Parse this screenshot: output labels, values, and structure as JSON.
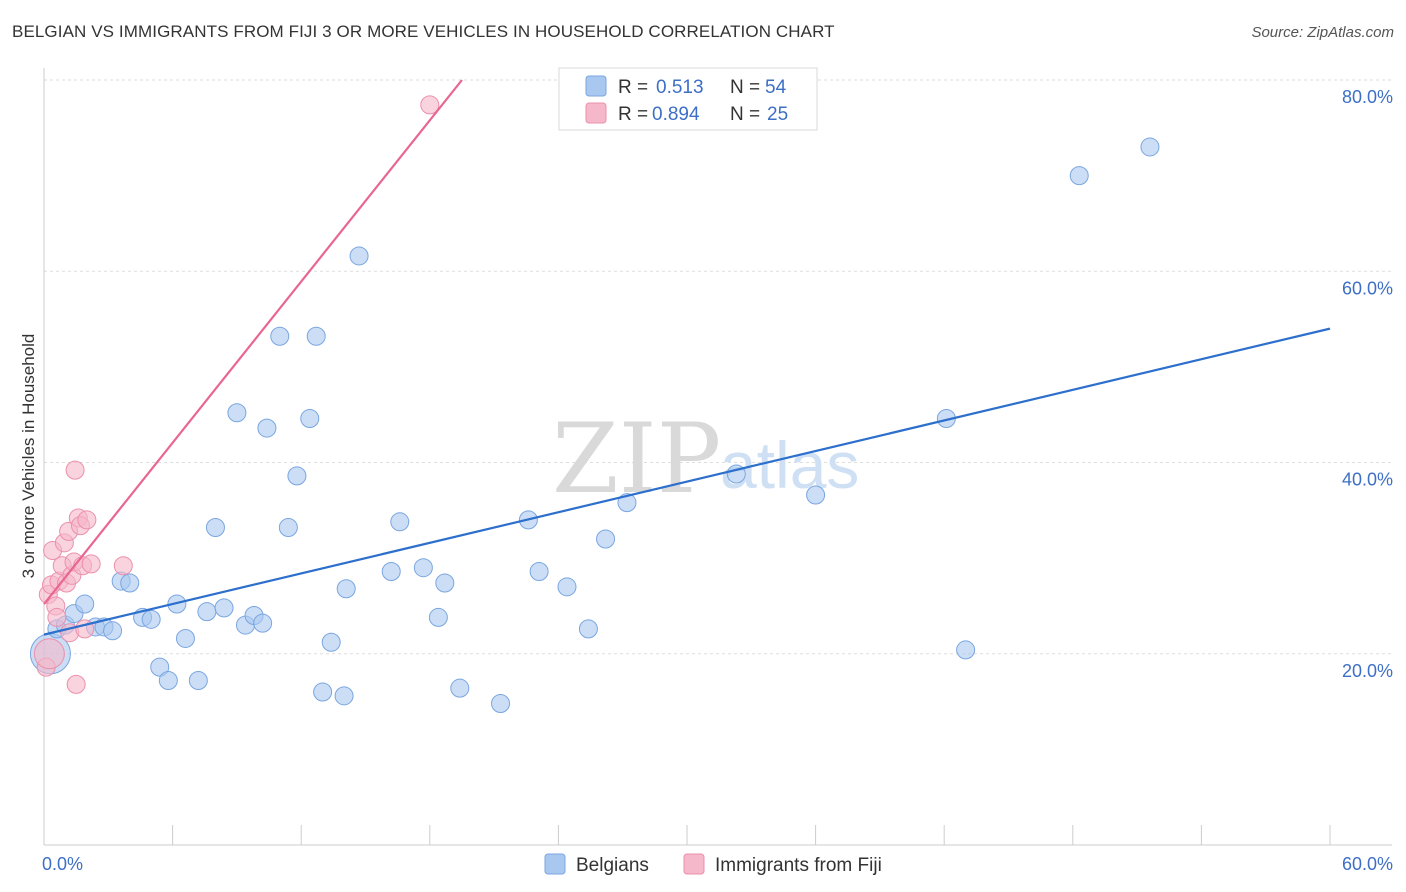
{
  "header": {
    "title": "BELGIAN VS IMMIGRANTS FROM FIJI 3 OR MORE VEHICLES IN HOUSEHOLD CORRELATION CHART",
    "source": "Source: ZipAtlas.com"
  },
  "watermark": {
    "zip": "ZIP",
    "atlas": "atlas"
  },
  "legend": [
    {
      "r_label": "R =",
      "r_value": "0.513",
      "n_label": "N =",
      "n_value": "54",
      "color": "#a9c8f0"
    },
    {
      "r_label": "R =",
      "r_value": "0.894",
      "n_label": "N =",
      "n_value": "25",
      "color": "#f5b8ca"
    }
  ],
  "chart_data": {
    "type": "scatter",
    "ylabel": "3 or more Vehicles in Household",
    "xlim": [
      0,
      60
    ],
    "ylim": [
      0,
      80
    ],
    "x_tick_labels": [
      {
        "value": 0,
        "label": "0.0%"
      },
      {
        "value": 60,
        "label": "60.0%"
      }
    ],
    "y_tick_labels": [
      {
        "value": 20,
        "label": "20.0%"
      },
      {
        "value": 40,
        "label": "40.0%"
      },
      {
        "value": 60,
        "label": "60.0%"
      },
      {
        "value": 80,
        "label": "80.0%"
      }
    ],
    "series": [
      {
        "name": "Belgians",
        "color": "#a9c8f0",
        "stroke": "#7aa6e0",
        "line_color": "#2d6fcc",
        "trend": [
          [
            0,
            22.0
          ],
          [
            60,
            54.0
          ]
        ],
        "points": [
          [
            0.3,
            20.0
          ],
          [
            0.6,
            22.6
          ],
          [
            1.0,
            23.0
          ],
          [
            1.4,
            24.2
          ],
          [
            1.9,
            25.2
          ],
          [
            2.4,
            22.8
          ],
          [
            2.8,
            22.8
          ],
          [
            3.2,
            22.4
          ],
          [
            3.6,
            27.6
          ],
          [
            4.0,
            27.4
          ],
          [
            4.6,
            23.8
          ],
          [
            5.0,
            23.6
          ],
          [
            5.4,
            18.6
          ],
          [
            5.8,
            17.2
          ],
          [
            6.2,
            25.2
          ],
          [
            6.6,
            21.6
          ],
          [
            7.2,
            17.2
          ],
          [
            7.6,
            24.4
          ],
          [
            8.0,
            33.2
          ],
          [
            8.4,
            24.8
          ],
          [
            9.0,
            45.2
          ],
          [
            9.4,
            23.0
          ],
          [
            9.8,
            24.0
          ],
          [
            10.2,
            23.2
          ],
          [
            10.4,
            43.6
          ],
          [
            11.0,
            53.2
          ],
          [
            11.4,
            33.2
          ],
          [
            11.8,
            38.6
          ],
          [
            12.4,
            44.6
          ],
          [
            12.7,
            53.2
          ],
          [
            13.0,
            16.0
          ],
          [
            13.4,
            21.2
          ],
          [
            14.0,
            15.6
          ],
          [
            14.1,
            26.8
          ],
          [
            14.7,
            61.6
          ],
          [
            16.2,
            28.6
          ],
          [
            16.6,
            33.8
          ],
          [
            17.7,
            29.0
          ],
          [
            18.4,
            23.8
          ],
          [
            18.7,
            27.4
          ],
          [
            19.4,
            16.4
          ],
          [
            21.3,
            14.8
          ],
          [
            22.6,
            34.0
          ],
          [
            23.1,
            28.6
          ],
          [
            24.4,
            27.0
          ],
          [
            25.4,
            22.6
          ],
          [
            26.2,
            32.0
          ],
          [
            27.2,
            35.8
          ],
          [
            32.3,
            38.8
          ],
          [
            36.0,
            36.6
          ],
          [
            42.1,
            44.6
          ],
          [
            43.0,
            20.4
          ],
          [
            48.3,
            70.0
          ],
          [
            51.6,
            73.0
          ]
        ]
      },
      {
        "name": "Immigrants from Fiji",
        "color": "#f5b8ca",
        "stroke": "#ec90ab",
        "line_color": "#e8668f",
        "trend": [
          [
            0,
            25.2
          ],
          [
            19.5,
            80.0
          ]
        ],
        "points": [
          [
            0.1,
            18.6
          ],
          [
            0.2,
            26.2
          ],
          [
            0.35,
            27.2
          ],
          [
            0.4,
            30.8
          ],
          [
            0.55,
            25.0
          ],
          [
            0.7,
            27.6
          ],
          [
            0.85,
            29.2
          ],
          [
            0.95,
            31.6
          ],
          [
            1.05,
            27.4
          ],
          [
            1.15,
            32.8
          ],
          [
            1.2,
            22.2
          ],
          [
            1.3,
            28.2
          ],
          [
            1.4,
            29.6
          ],
          [
            1.5,
            16.8
          ],
          [
            1.45,
            39.2
          ],
          [
            1.6,
            34.2
          ],
          [
            1.7,
            33.4
          ],
          [
            1.8,
            29.2
          ],
          [
            1.9,
            22.6
          ],
          [
            2.0,
            34.0
          ],
          [
            2.2,
            29.4
          ],
          [
            3.7,
            29.2
          ],
          [
            18.0,
            77.4
          ],
          [
            0.25,
            20.0
          ],
          [
            0.6,
            23.8
          ]
        ]
      }
    ]
  }
}
